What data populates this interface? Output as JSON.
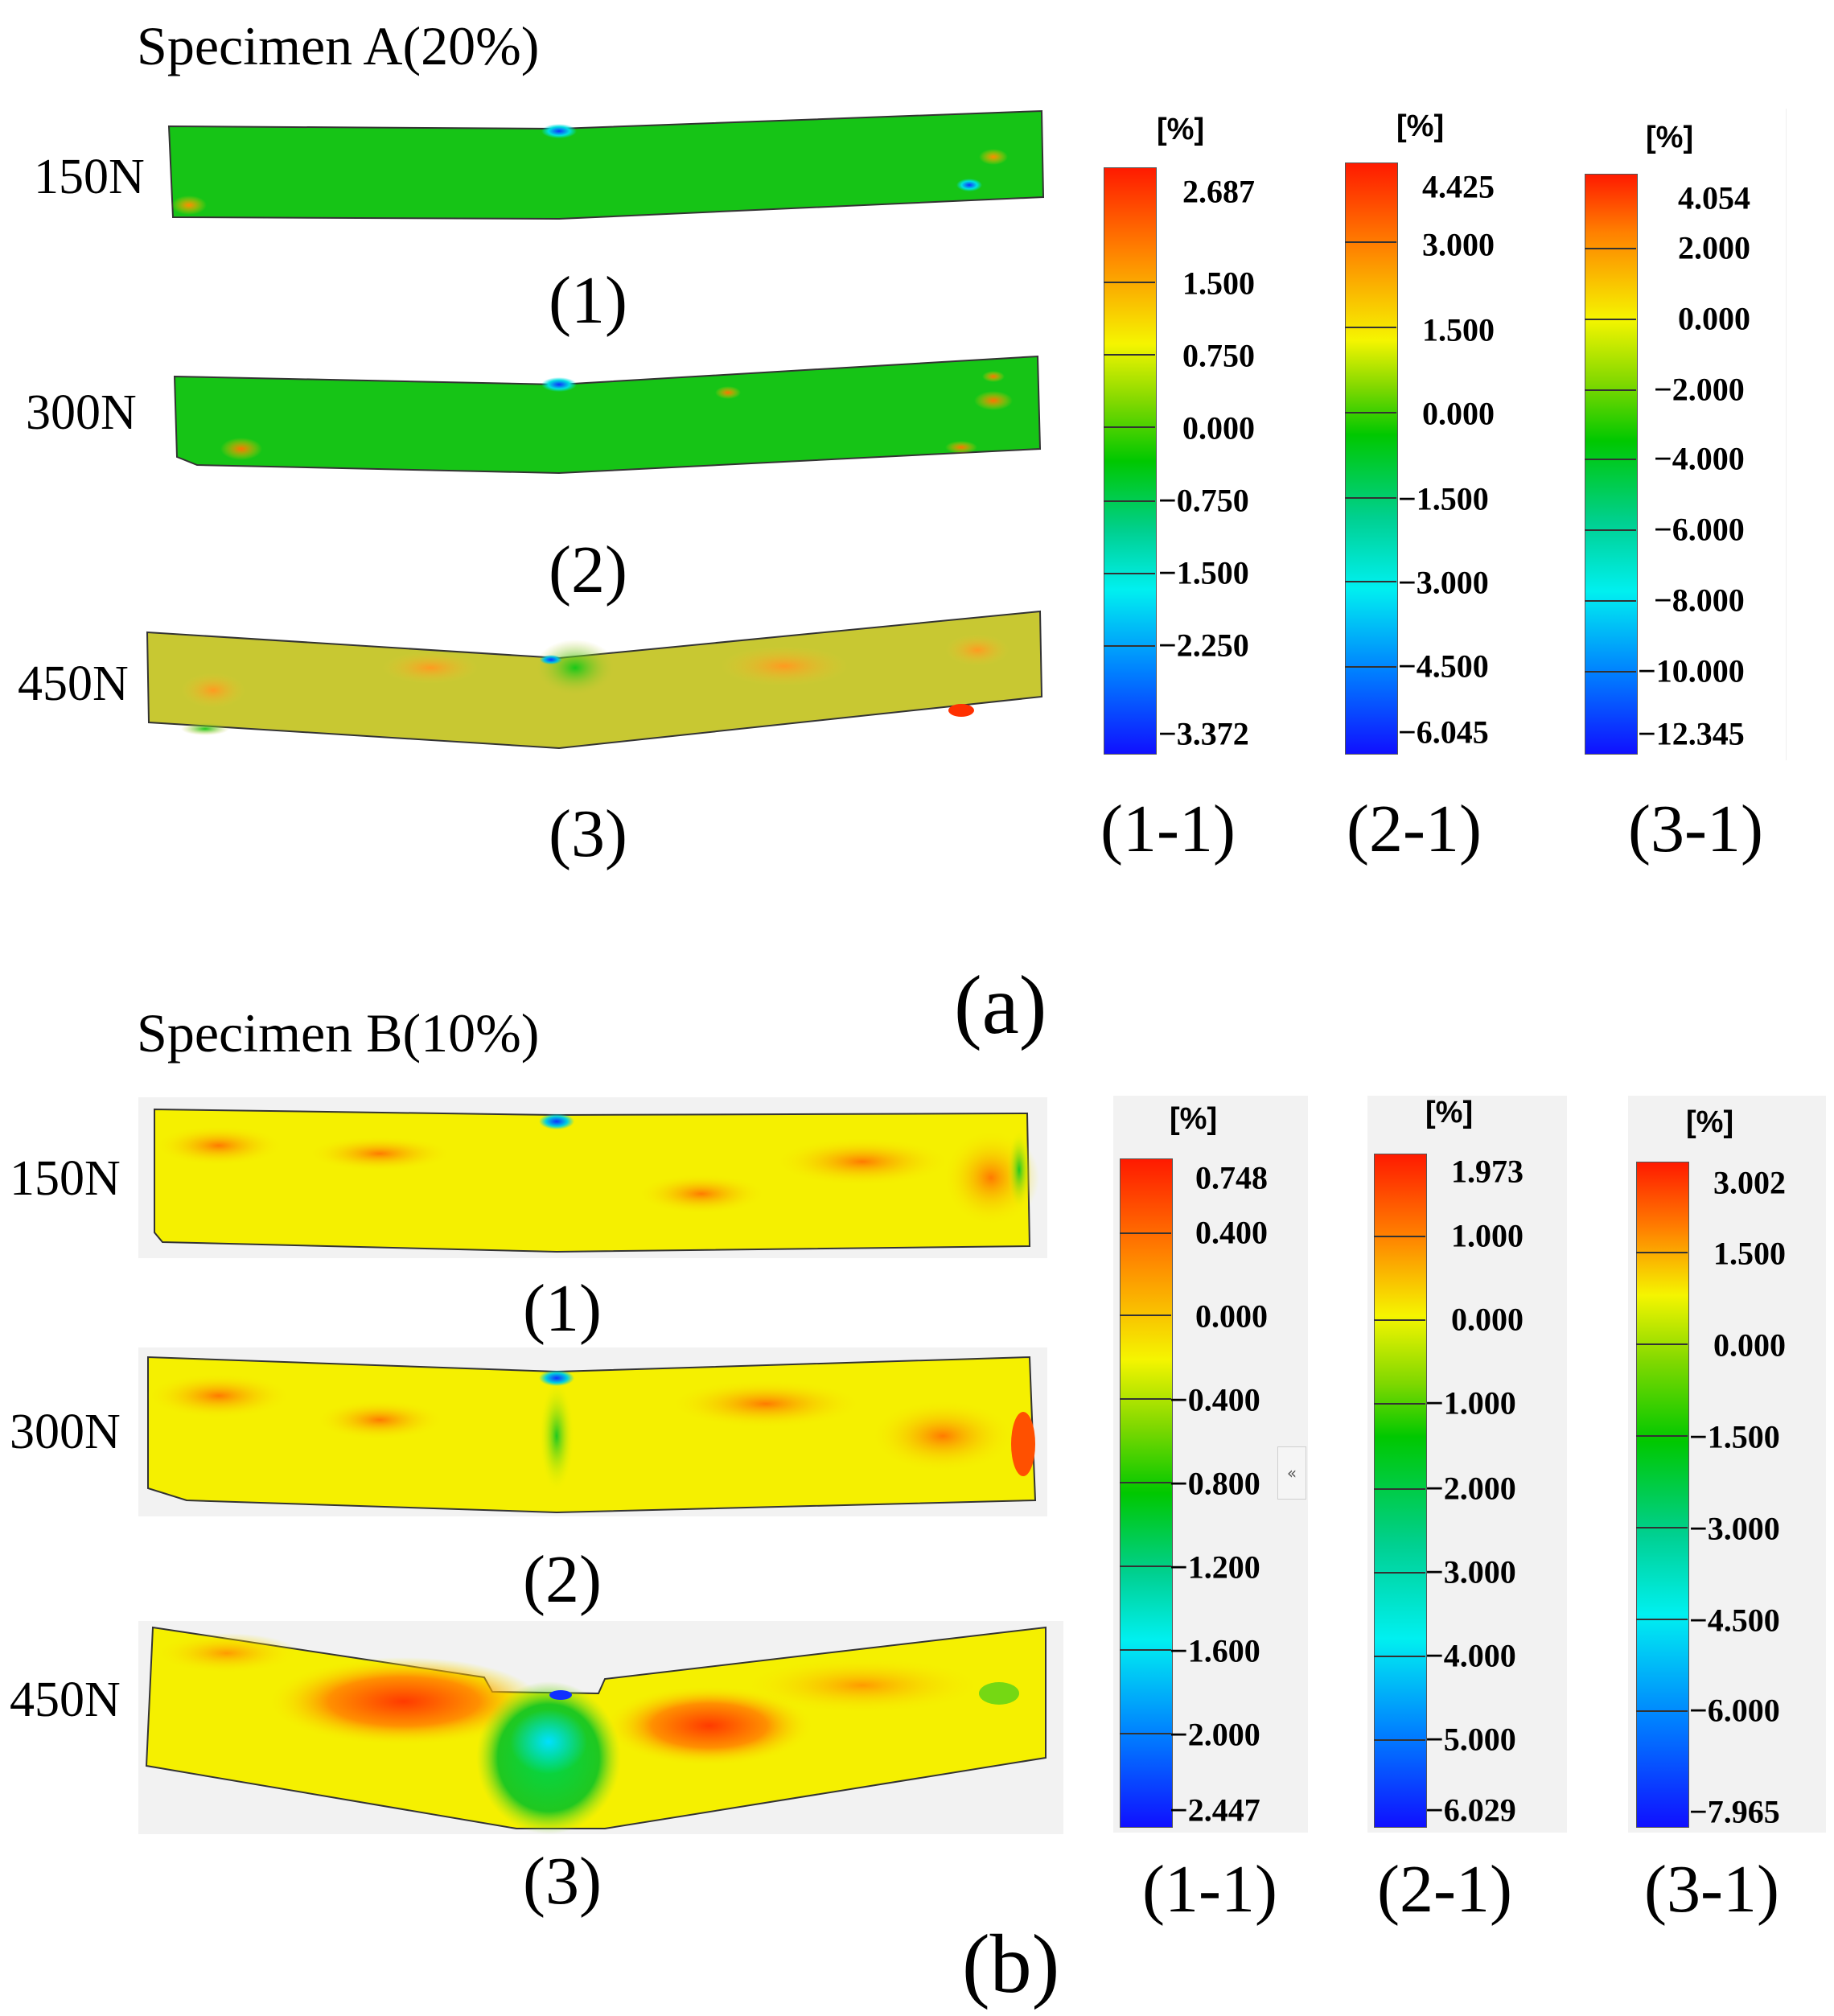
{
  "figure": {
    "panel_a": {
      "title": "Specimen A(20%)",
      "label": "(a)",
      "beams": [
        {
          "load": "150N",
          "sublabel": "(1)"
        },
        {
          "load": "300N",
          "sublabel": "(2)"
        },
        {
          "load": "450N",
          "sublabel": "(3)"
        }
      ],
      "colorbars": [
        {
          "unit": "[%]",
          "label": "(1-1)",
          "ticks": [
            "2.687",
            "1.500",
            "0.750",
            "0.000",
            "−0.750",
            "−1.500",
            "−2.250",
            "−3.372"
          ]
        },
        {
          "unit": "[%]",
          "label": "(2-1)",
          "ticks": [
            "4.425",
            "3.000",
            "1.500",
            "0.000",
            "−1.500",
            "−3.000",
            "−4.500",
            "−6.045"
          ]
        },
        {
          "unit": "[%]",
          "label": "(3-1)",
          "ticks": [
            "4.054",
            "2.000",
            "0.000",
            "−2.000",
            "−4.000",
            "−6.000",
            "−8.000",
            "−10.000",
            "−12.345"
          ]
        }
      ]
    },
    "panel_b": {
      "title": "Specimen B(10%)",
      "label": "(b)",
      "beams": [
        {
          "load": "150N",
          "sublabel": "(1)"
        },
        {
          "load": "300N",
          "sublabel": "(2)"
        },
        {
          "load": "450N",
          "sublabel": "(3)"
        }
      ],
      "colorbars": [
        {
          "unit": "[%]",
          "label": "(1-1)",
          "ticks": [
            "0.748",
            "0.400",
            "0.000",
            "−0.400",
            "−0.800",
            "−1.200",
            "−1.600",
            "−2.000",
            "−2.447"
          ]
        },
        {
          "unit": "[%]",
          "label": "(2-1)",
          "ticks": [
            "1.973",
            "1.000",
            "0.000",
            "−1.000",
            "−2.000",
            "−3.000",
            "−4.000",
            "−5.000",
            "−6.029"
          ]
        },
        {
          "unit": "[%]",
          "label": "(3-1)",
          "ticks": [
            "3.002",
            "1.500",
            "0.000",
            "−1.500",
            "−3.000",
            "−4.500",
            "−6.000",
            "−7.965"
          ]
        }
      ],
      "collapse_button": "«"
    },
    "colors": {
      "red": "#ff1a00",
      "orange": "#ff8000",
      "yellow": "#f5f500",
      "green": "#00c800",
      "cyan": "#00f0f0",
      "blue": "#1010ff",
      "beam_green": "#16c416",
      "beam_olive": "#c8c832"
    }
  }
}
